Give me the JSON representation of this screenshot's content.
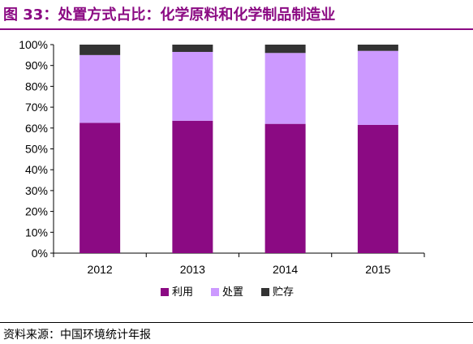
{
  "title": "图 33：处置方式占比：化学原料和化学制品制造业",
  "source": "资料来源：中国环境统计年报",
  "chart_data": {
    "type": "bar",
    "stacked": true,
    "categories": [
      "2012",
      "2013",
      "2014",
      "2015"
    ],
    "series": [
      {
        "name": "利用",
        "color": "#8b0a83",
        "values": [
          62.5,
          63.5,
          62.0,
          61.5
        ]
      },
      {
        "name": "处置",
        "color": "#cc99ff",
        "values": [
          32.5,
          33.0,
          34.0,
          35.5
        ]
      },
      {
        "name": "贮存",
        "color": "#333333",
        "values": [
          5.0,
          3.5,
          4.0,
          3.0
        ]
      }
    ],
    "ylim": [
      0,
      100
    ],
    "yticks": [
      "0%",
      "10%",
      "20%",
      "30%",
      "40%",
      "50%",
      "60%",
      "70%",
      "80%",
      "90%",
      "100%"
    ],
    "grid": false,
    "legend": "bottom"
  }
}
